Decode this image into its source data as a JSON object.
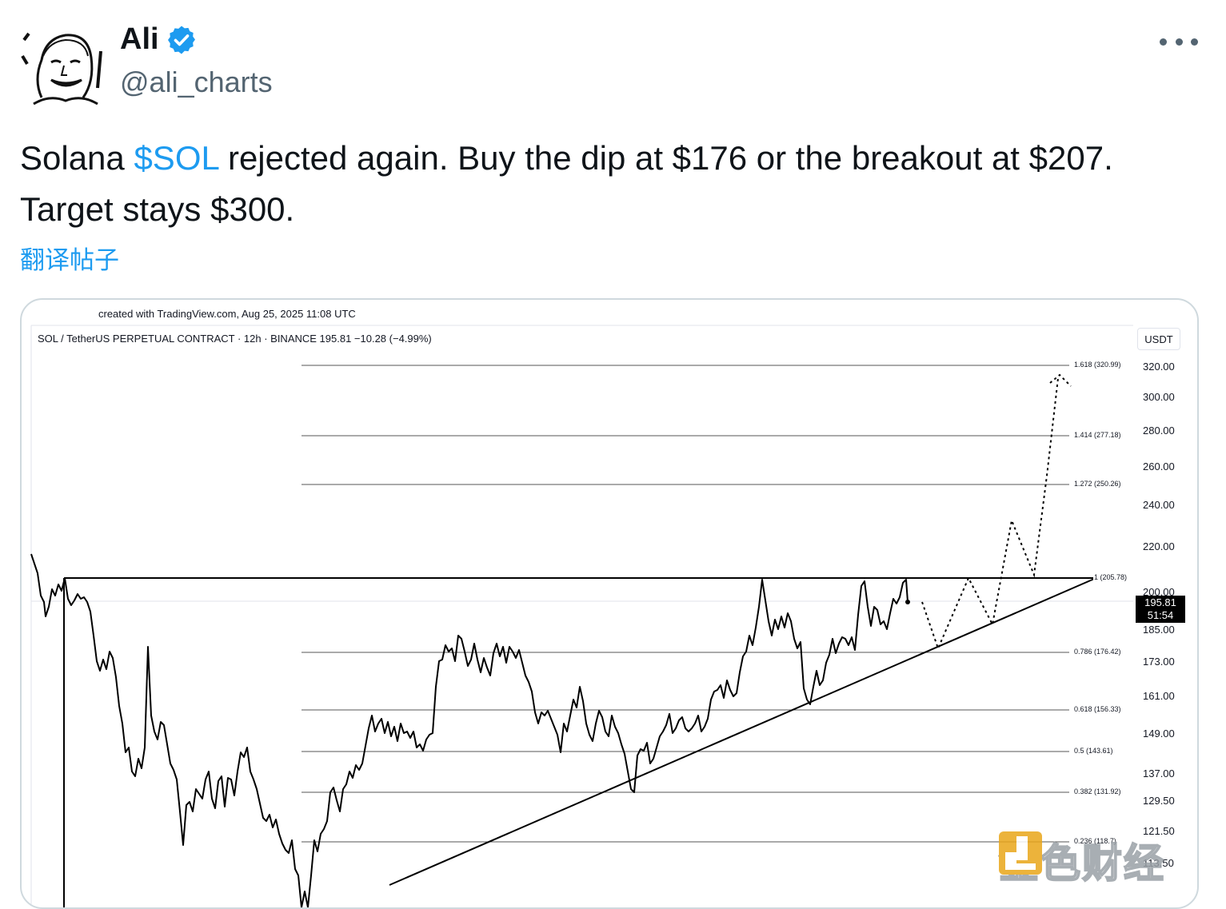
{
  "author": {
    "name": "Ali",
    "handle": "@ali_charts",
    "verified": true
  },
  "more_icon": "more-horizontal-icon",
  "tweet": {
    "text_before": "Solana ",
    "cashtag": "$SOL",
    "text_after": " rejected again. Buy the dip at $176 or the breakout at $207. Target stays $300.",
    "translate_label": "翻译帖子"
  },
  "colors": {
    "link": "#1d9bf0",
    "text": "#0f1419",
    "secondary": "#536471"
  },
  "chart": {
    "created_with": "created with TradingView.com, Aug 25, 2025 11:08 UTC",
    "symbol_line": "SOL / TetherUS PERPETUAL CONTRACT · 12h · BINANCE  195.81  −10.28 (−4.99%)",
    "currency": "USDT",
    "price_tag": {
      "price": "195.81",
      "countdown": "51:54"
    },
    "axis_labels": [
      "320.00",
      "300.00",
      "280.00",
      "260.00",
      "240.00",
      "220.00",
      "200.00",
      "185.00",
      "173.00",
      "161.00",
      "149.00",
      "137.00",
      "129.50",
      "121.50",
      "113.50"
    ],
    "fib_levels": [
      {
        "label": "1.618 (320.99)"
      },
      {
        "label": "1.414 (277.18)"
      },
      {
        "label": "1.272 (250.26)"
      },
      {
        "label": "1 (205.78)"
      },
      {
        "label": "0.786 (176.42)"
      },
      {
        "label": "0.618 (156.33)"
      },
      {
        "label": "0.5 (143.61)"
      },
      {
        "label": "0.382 (131.92)"
      },
      {
        "label": "0.236 (118.7)"
      }
    ]
  },
  "watermark": {
    "text": "金色财经"
  }
}
